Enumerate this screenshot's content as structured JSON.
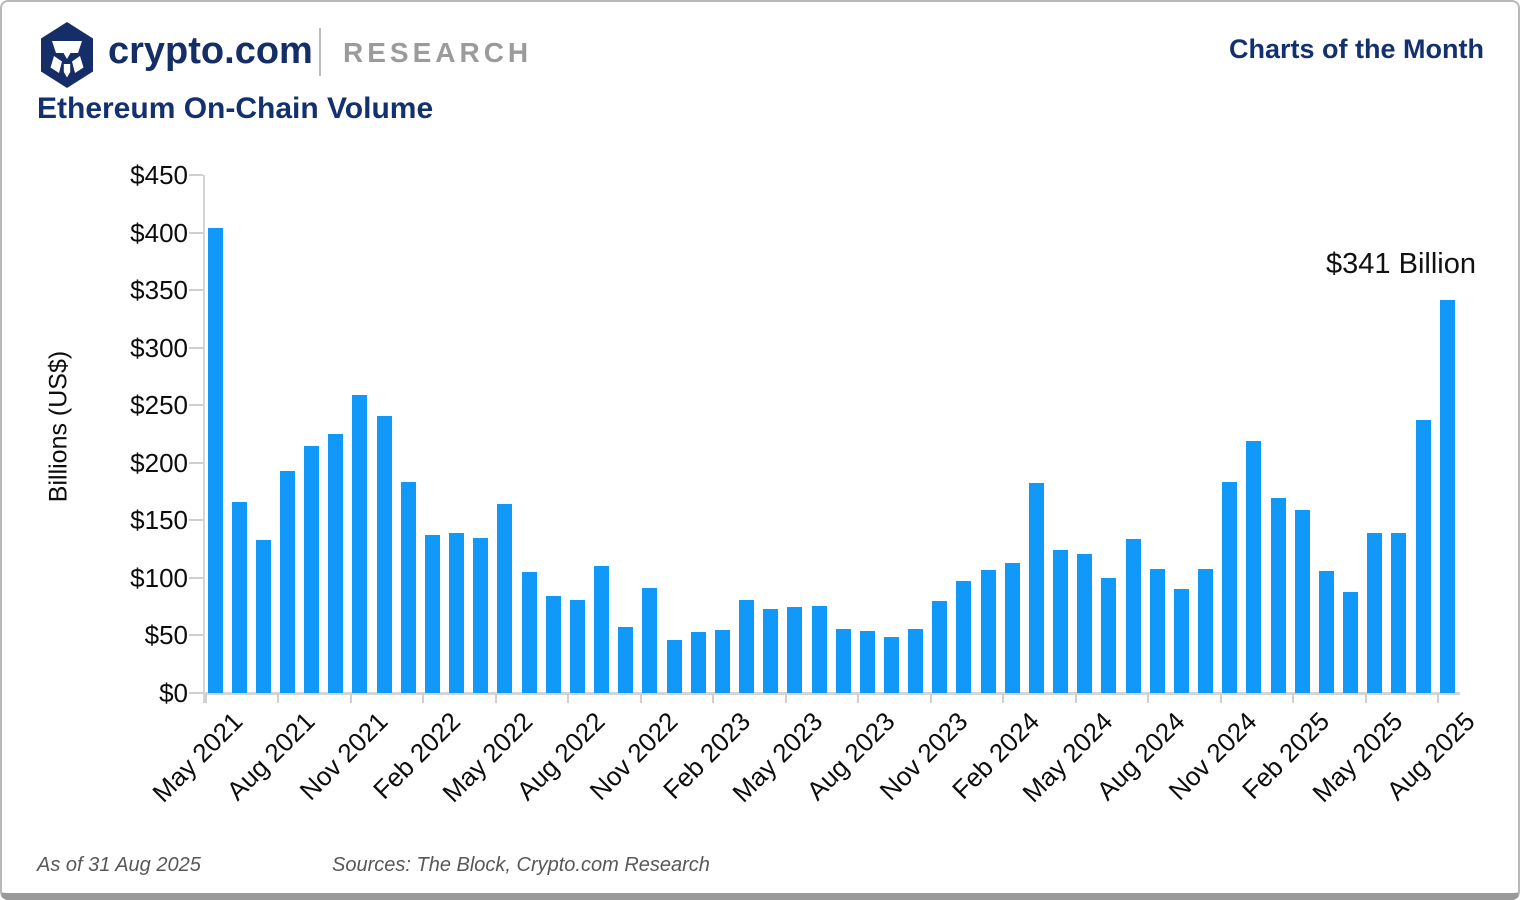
{
  "header": {
    "brand": "crypto.com",
    "research_label": "RESEARCH",
    "right_title": "Charts of the Month",
    "logo_icon": "crypto-com-lion-hexagon-icon"
  },
  "page_title": "Ethereum On-Chain Volume",
  "chart_data": {
    "type": "bar",
    "title": "Ethereum On-Chain Volume",
    "xlabel": "",
    "ylabel": "Billions (US$)",
    "unit": "USD billions",
    "ylim": [
      0,
      450
    ],
    "grid": false,
    "legend_position": "none",
    "bar_color": "#1199fa",
    "y_tick_values": [
      0,
      50,
      100,
      150,
      200,
      250,
      300,
      350,
      400,
      450
    ],
    "y_tick_labels": [
      "$0",
      "$50",
      "$100",
      "$150",
      "$200",
      "$250",
      "$300",
      "$350",
      "$400",
      "$450"
    ],
    "x_label_every": 3,
    "categories": [
      "May 2021",
      "Jun 2021",
      "Jul 2021",
      "Aug 2021",
      "Sep 2021",
      "Oct 2021",
      "Nov 2021",
      "Dec 2021",
      "Jan 2022",
      "Feb 2022",
      "Mar 2022",
      "Apr 2022",
      "May 2022",
      "Jun 2022",
      "Jul 2022",
      "Aug 2022",
      "Sep 2022",
      "Oct 2022",
      "Nov 2022",
      "Dec 2022",
      "Jan 2023",
      "Feb 2023",
      "Mar 2023",
      "Apr 2023",
      "May 2023",
      "Jun 2023",
      "Jul 2023",
      "Aug 2023",
      "Sep 2023",
      "Oct 2023",
      "Nov 2023",
      "Dec 2023",
      "Jan 2024",
      "Feb 2024",
      "Mar 2024",
      "Apr 2024",
      "May 2024",
      "Jun 2024",
      "Jul 2024",
      "Aug 2024",
      "Sep 2024",
      "Oct 2024",
      "Nov 2024",
      "Dec 2024",
      "Jan 2025",
      "Feb 2025",
      "Mar 2025",
      "Apr 2025",
      "May 2025",
      "Jun 2025",
      "Jul 2025",
      "Aug 2025"
    ],
    "values": [
      404,
      166,
      133,
      193,
      215,
      225,
      259,
      241,
      183,
      137,
      139,
      135,
      164,
      105,
      84,
      81,
      110,
      57,
      91,
      46,
      53,
      55,
      81,
      73,
      75,
      76,
      56,
      54,
      49,
      56,
      80,
      97,
      107,
      113,
      182,
      124,
      121,
      100,
      134,
      108,
      90,
      108,
      183,
      219,
      169,
      159,
      106,
      88,
      139,
      139,
      237,
      341
    ],
    "annotation": {
      "text": "$341 Billion",
      "category": "Aug 2025",
      "value": 341
    }
  },
  "footer": {
    "as_of": "As of 31 Aug 2025",
    "sources": "Sources: The Block, Crypto.com Research"
  },
  "colors": {
    "navy": "#14316f",
    "logo_navy": "#152e68",
    "research_gray": "#9b9b9b",
    "bar_blue": "#1199fa",
    "axis_gray": "#d4d4d4",
    "text_black": "#0d0d0d",
    "footer_gray": "#56585a"
  }
}
